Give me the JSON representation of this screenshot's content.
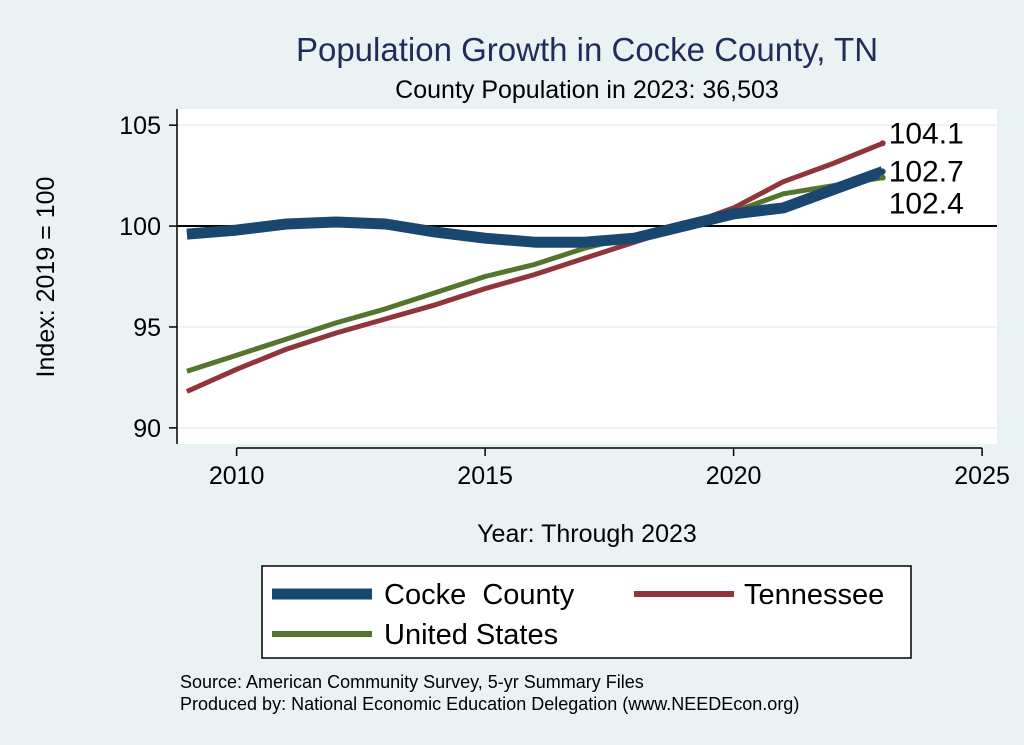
{
  "chart_data": {
    "type": "line",
    "title": "Population Growth in Cocke County, TN",
    "subtitle": "County Population in 2023: 36,503",
    "xlabel": "Year: Through 2023",
    "ylabel": "Index: 2019 = 100",
    "xlim": [
      2008.8,
      2025.3
    ],
    "ylim": [
      89.2,
      105.8
    ],
    "xticks": [
      2010,
      2015,
      2020,
      2025
    ],
    "yticks": [
      90,
      95,
      100,
      105
    ],
    "reference_line": 100,
    "grid": true,
    "legend_position": "bottom",
    "x": [
      2009,
      2010,
      2011,
      2012,
      2013,
      2014,
      2015,
      2016,
      2017,
      2018,
      2019,
      2020,
      2021,
      2022,
      2023
    ],
    "series": [
      {
        "name": "Cocke  County",
        "color": "#1a476f",
        "values": [
          99.6,
          99.8,
          100.1,
          100.2,
          100.1,
          99.7,
          99.4,
          99.2,
          99.2,
          99.4,
          100.0,
          100.6,
          100.9,
          101.8,
          102.7
        ]
      },
      {
        "name": "Tennessee",
        "color": "#90353b",
        "values": [
          91.8,
          92.9,
          93.9,
          94.7,
          95.4,
          96.1,
          96.9,
          97.6,
          98.4,
          99.2,
          100.0,
          100.9,
          102.2,
          103.1,
          104.1
        ]
      },
      {
        "name": "United States",
        "color": "#55752f",
        "values": [
          92.8,
          93.6,
          94.4,
          95.2,
          95.9,
          96.7,
          97.5,
          98.1,
          98.9,
          99.5,
          100.0,
          100.7,
          101.6,
          102.0,
          102.4
        ]
      }
    ],
    "end_labels": [
      "102.7",
      "104.1",
      "102.4"
    ]
  },
  "footer": {
    "source": "Source: American Community Survey, 5-yr Summary Files",
    "producer": "Produced by: National Economic Education Delegation (www.NEEDEcon.org)"
  },
  "colors": {
    "background": "#eaf2f3",
    "plot_background": "#ffffff",
    "gridline": "#eaf2f3",
    "title": "#1f2d5a"
  }
}
